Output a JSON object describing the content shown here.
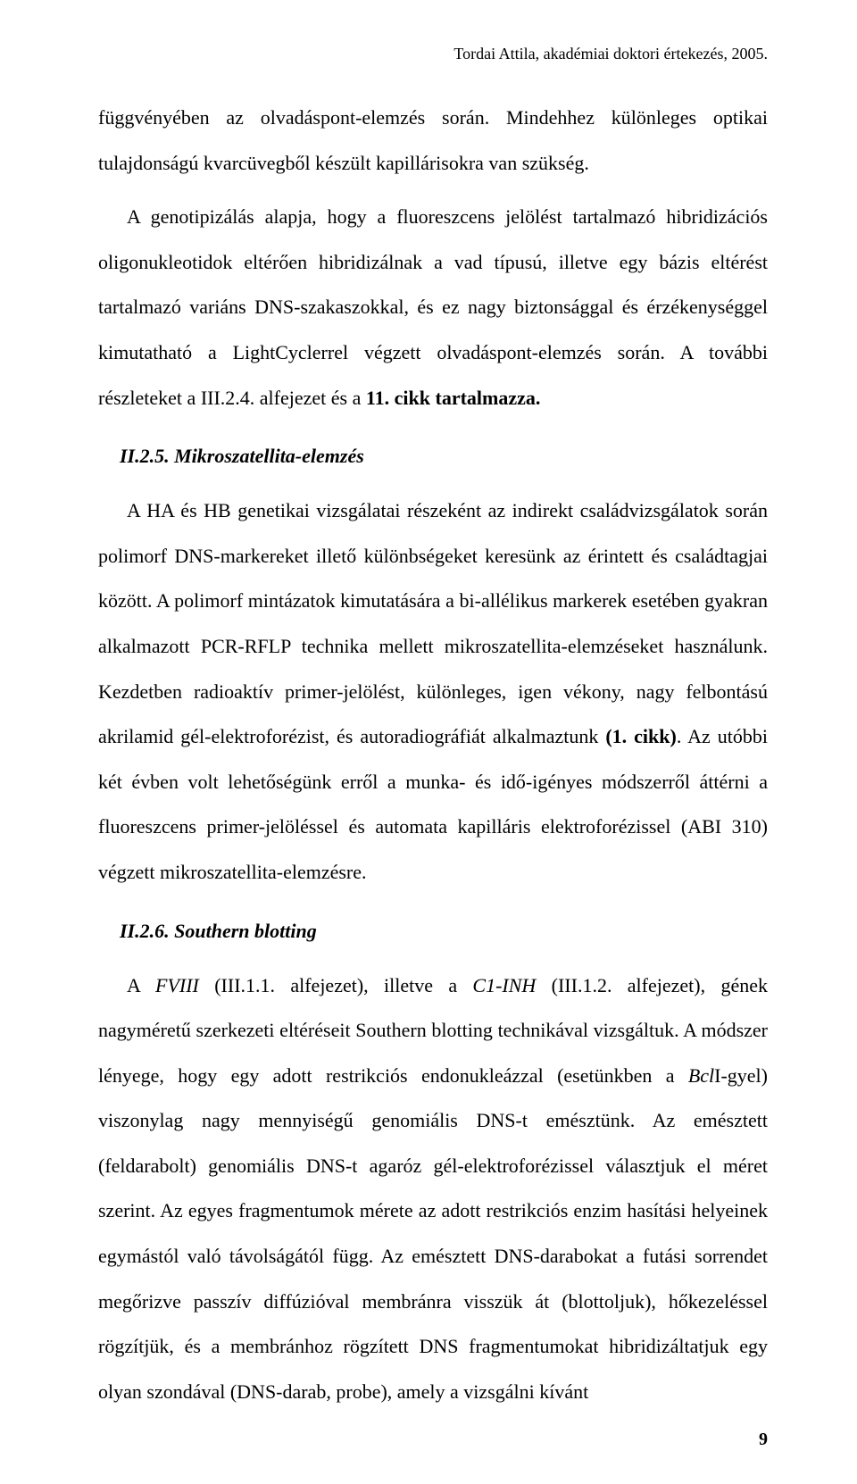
{
  "runningHead": "Tordai Attila, akadémiai doktori értekezés, 2005.",
  "para1_a": "függvényében az olvadáspont-elemzés során. Mindehhez különleges optikai tulajdonságú kvarcüvegből készült kapillárisokra van szükség.",
  "para2_a": "A genotipizálás alapja, hogy a fluoreszcens jelölést tartalmazó hibridizációs oligonukleotidok eltérően hibridizálnak a vad típusú, illetve egy bázis eltérést tartalmazó variáns DNS-szakaszokkal, és ez nagy biztonsággal és érzékenységgel kimutatható a LightCyclerrel végzett olvadáspont-elemzés során. A további részleteket a III.2.4. alfejezet és a ",
  "para2_b": "11. cikk tartalmazza.",
  "heading1": "II.2.5. Mikroszatellita-elemzés",
  "para3_a": "A HA és HB genetikai vizsgálatai részeként az indirekt családvizsgálatok során polimorf DNS-markereket illető különbségeket keresünk az érintett és családtagjai között. A polimorf mintázatok kimutatására a bi-allélikus markerek esetében gyakran alkalmazott PCR-RFLP technika mellett mikroszatellita-elemzéseket használunk. Kezdetben radioaktív primer-jelölést, különleges, igen vékony, nagy felbontású akrilamid gél-elektroforézist, és autoradiográfiát alkalmaztunk ",
  "para3_b": "(1. cikk)",
  "para3_c": ". Az utóbbi két évben volt lehetőségünk erről a munka- és idő-igényes módszerről áttérni a fluoreszcens primer-jelöléssel és automata kapilláris elektroforézissel (ABI 310) végzett mikroszatellita-elemzésre.",
  "heading2": "II.2.6. Southern blotting",
  "para4_a": "A ",
  "para4_b": "FVIII",
  "para4_c": " (III.1.1. alfejezet), illetve a ",
  "para4_d": "C1-INH",
  "para4_e": " (III.1.2. alfejezet), gének nagyméretű szerkezeti eltéréseit Southern blotting technikával vizsgáltuk. A módszer lényege, hogy egy adott restrikciós endonukleázzal (esetünkben a ",
  "para4_f": "Bcl",
  "para4_g": "I-gyel) viszonylag nagy mennyiségű genomiális DNS-t emésztünk. Az emésztett (feldarabolt) genomiális DNS-t agaróz gél-elektroforézissel választjuk el méret szerint. Az egyes fragmentumok mérete az adott restrikciós enzim hasítási helyeinek egymástól való távolságától függ. Az emésztett DNS-darabokat a futási sorrendet megőrizve passzív diffúzióval membránra visszük át (blottoljuk), hőkezeléssel rögzítjük, és a membránhoz rögzített DNS fragmentumokat hibridizáltatjuk egy olyan szondával (DNS-darab, probe), amely a vizsgálni kívánt",
  "pageNumber": "9"
}
